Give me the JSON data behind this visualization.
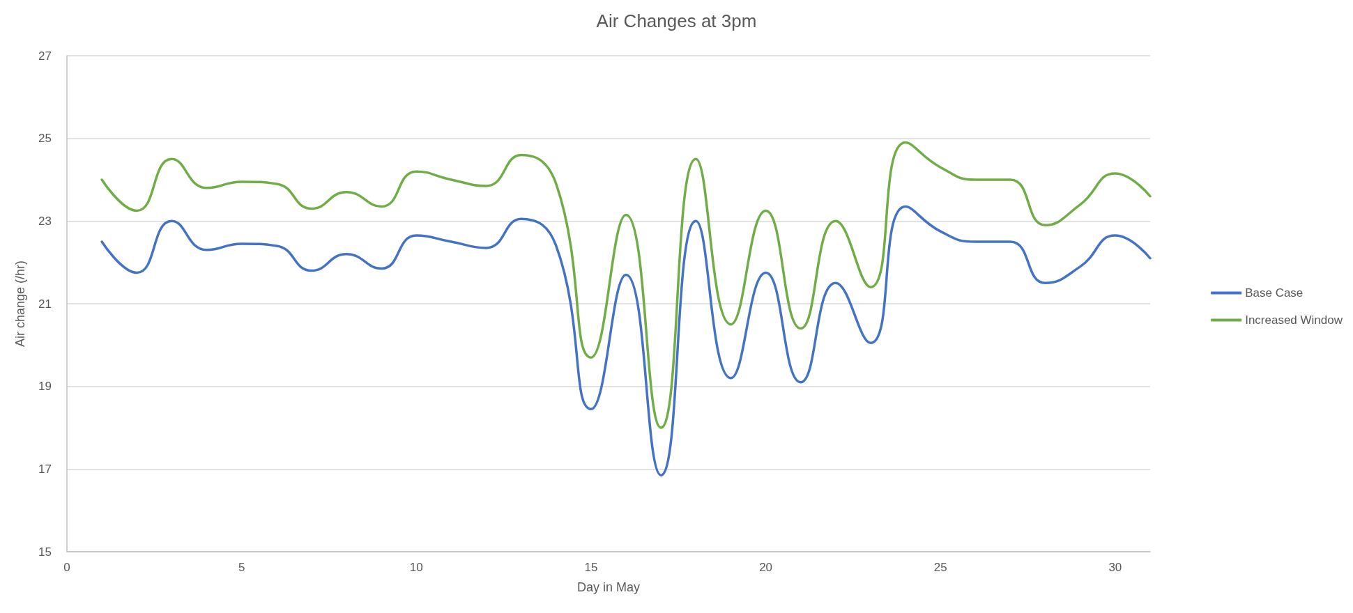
{
  "chart_data": {
    "type": "line",
    "title": "Air Changes at 3pm",
    "xlabel": "Day in May",
    "ylabel": "Air change (/hr)",
    "x": [
      1,
      2,
      3,
      4,
      5,
      6,
      7,
      8,
      9,
      10,
      11,
      12,
      13,
      14,
      15,
      16,
      17,
      18,
      19,
      20,
      21,
      22,
      23,
      24,
      25,
      26,
      27,
      28,
      29,
      30,
      31
    ],
    "series": [
      {
        "name": "Base Case",
        "color": "#4472c4",
        "values": [
          22.5,
          21.75,
          23.0,
          22.3,
          22.45,
          22.4,
          21.8,
          22.2,
          21.85,
          22.65,
          22.5,
          22.35,
          23.05,
          22.4,
          18.45,
          21.7,
          16.85,
          23.0,
          19.2,
          21.75,
          19.1,
          21.5,
          20.05,
          23.35,
          22.75,
          22.5,
          22.5,
          21.5,
          21.9,
          22.65,
          22.1
        ]
      },
      {
        "name": "Increased Window",
        "color": "#70ad47",
        "values": [
          24.0,
          23.25,
          24.5,
          23.8,
          23.95,
          23.9,
          23.3,
          23.7,
          23.35,
          24.2,
          24.0,
          23.85,
          24.6,
          23.9,
          19.7,
          23.15,
          18.0,
          24.5,
          20.5,
          23.25,
          20.4,
          23.0,
          21.4,
          24.9,
          24.3,
          24.0,
          24.0,
          22.9,
          23.4,
          24.15,
          23.6
        ]
      }
    ],
    "xlim": [
      0,
      31
    ],
    "xticks": [
      0,
      5,
      10,
      15,
      20,
      25,
      30
    ],
    "ylim": [
      15,
      27
    ],
    "yticks": [
      15,
      17,
      19,
      21,
      23,
      25,
      27
    ],
    "grid": "y",
    "legend": "right",
    "marker": "none",
    "line_style": "solid"
  }
}
